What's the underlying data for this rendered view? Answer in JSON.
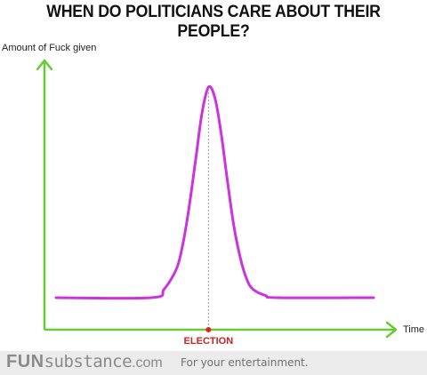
{
  "chart_data": {
    "type": "line",
    "title": "WHEN DO POLITICIANS CARE ABOUT THEIR PEOPLE?",
    "xlabel": "Time",
    "ylabel": "Amount of Fuck given",
    "annotation": "ELECTION",
    "grid": false,
    "legend": "none",
    "series": [
      {
        "color": "#cc33dd",
        "x": [
          0.0,
          0.3,
          0.34,
          0.38,
          0.4,
          0.42,
          0.44,
          0.46,
          0.48,
          0.5,
          0.52,
          0.54,
          0.56,
          0.58,
          0.6,
          0.62,
          0.66,
          0.7,
          1.0
        ],
        "y": [
          0.0,
          0.0,
          0.04,
          0.14,
          0.26,
          0.44,
          0.66,
          0.88,
          1.0,
          0.95,
          0.78,
          0.55,
          0.34,
          0.19,
          0.09,
          0.04,
          0.01,
          0.0,
          0.0
        ]
      }
    ],
    "xlim": [
      0,
      1
    ],
    "ylim": [
      0,
      1
    ]
  },
  "colors": {
    "axis": "#66cc33",
    "curve": "#cc33dd",
    "election_marker": "#dd2222",
    "election_label": "#cc2222"
  },
  "footer": {
    "brand_fun": "FUN",
    "brand_sub": "substance",
    "brand_tld": ".com",
    "tagline": "For your entertainment."
  }
}
